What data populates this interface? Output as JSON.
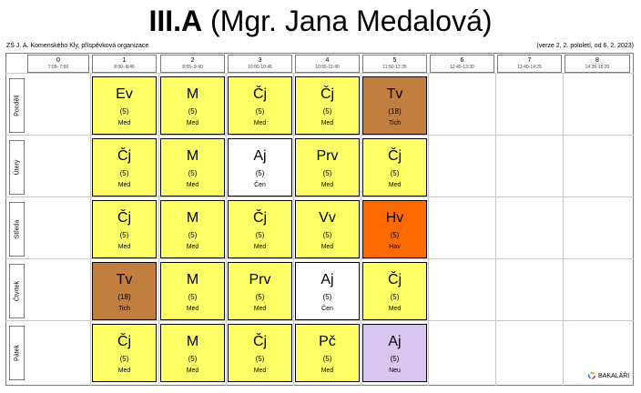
{
  "header": {
    "class_name": "III.A",
    "teacher": "(Mgr. Jana Medalová)",
    "school": "ZŠ J. A. Komenského Kly, příspěvková organizace",
    "version": "(verze 2, 2. pololetí, od 6. 2. 2023)"
  },
  "periods": [
    {
      "num": "0",
      "time": "7:05- 7:50"
    },
    {
      "num": "1",
      "time": "8:00- 8:45"
    },
    {
      "num": "2",
      "time": "8:55- 9:40"
    },
    {
      "num": "3",
      "time": "10:00-10:45"
    },
    {
      "num": "4",
      "time": "10:55-11:40"
    },
    {
      "num": "5",
      "time": "11:50-12:35"
    },
    {
      "num": "6",
      "time": "12:45-13:30"
    },
    {
      "num": "7",
      "time": "13:40-14:25"
    },
    {
      "num": "8",
      "time": "14:35-15:20"
    }
  ],
  "days": [
    "Pondělí",
    "Úterý",
    "Středa",
    "Čtvrtek",
    "Pátek"
  ],
  "lessons": [
    [
      {
        "subject": "Ev",
        "room": "(5)",
        "teacher": "Med",
        "color": "#ffff66"
      },
      {
        "subject": "M",
        "room": "(5)",
        "teacher": "Med",
        "color": "#ffff66"
      },
      {
        "subject": "Čj",
        "room": "(5)",
        "teacher": "Med",
        "color": "#ffff66"
      },
      {
        "subject": "Čj",
        "room": "(5)",
        "teacher": "Med",
        "color": "#ffff66"
      },
      {
        "subject": "Tv",
        "room": "(18)",
        "teacher": "Tich",
        "color": "#c17e3f"
      }
    ],
    [
      {
        "subject": "Čj",
        "room": "(5)",
        "teacher": "Med",
        "color": "#ffff66"
      },
      {
        "subject": "M",
        "room": "(5)",
        "teacher": "Med",
        "color": "#ffff66"
      },
      {
        "subject": "Aj",
        "room": "(5)",
        "teacher": "Čen",
        "color": "#ffffff"
      },
      {
        "subject": "Prv",
        "room": "(5)",
        "teacher": "Med",
        "color": "#ffff66"
      },
      {
        "subject": "Čj",
        "room": "(5)",
        "teacher": "Med",
        "color": "#ffff66"
      }
    ],
    [
      {
        "subject": "Čj",
        "room": "(5)",
        "teacher": "Med",
        "color": "#ffff66"
      },
      {
        "subject": "M",
        "room": "(5)",
        "teacher": "Med",
        "color": "#ffff66"
      },
      {
        "subject": "Čj",
        "room": "(5)",
        "teacher": "Med",
        "color": "#ffff66"
      },
      {
        "subject": "Vv",
        "room": "(5)",
        "teacher": "Med",
        "color": "#ffff66"
      },
      {
        "subject": "Hv",
        "room": "(5)",
        "teacher": "Hav",
        "color": "#ff6a00"
      }
    ],
    [
      {
        "subject": "Tv",
        "room": "(18)",
        "teacher": "Tich",
        "color": "#c17e3f"
      },
      {
        "subject": "M",
        "room": "(5)",
        "teacher": "Med",
        "color": "#ffff66"
      },
      {
        "subject": "Prv",
        "room": "(5)",
        "teacher": "Med",
        "color": "#ffff66"
      },
      {
        "subject": "Aj",
        "room": "(5)",
        "teacher": "Čen",
        "color": "#ffffff"
      },
      {
        "subject": "Čj",
        "room": "(5)",
        "teacher": "Med",
        "color": "#ffff66"
      }
    ],
    [
      {
        "subject": "Čj",
        "room": "(5)",
        "teacher": "Med",
        "color": "#ffff66"
      },
      {
        "subject": "M",
        "room": "(5)",
        "teacher": "Med",
        "color": "#ffff66"
      },
      {
        "subject": "Čj",
        "room": "(5)",
        "teacher": "Med",
        "color": "#ffff66"
      },
      {
        "subject": "Pč",
        "room": "(5)",
        "teacher": "Med",
        "color": "#ffff66"
      },
      {
        "subject": "Aj",
        "room": "(5)",
        "teacher": "Neu",
        "color": "#d9c6f0"
      }
    ]
  ],
  "brand": {
    "label": "BAKALÁŘI",
    "icon": "bakalari-logo-icon"
  }
}
